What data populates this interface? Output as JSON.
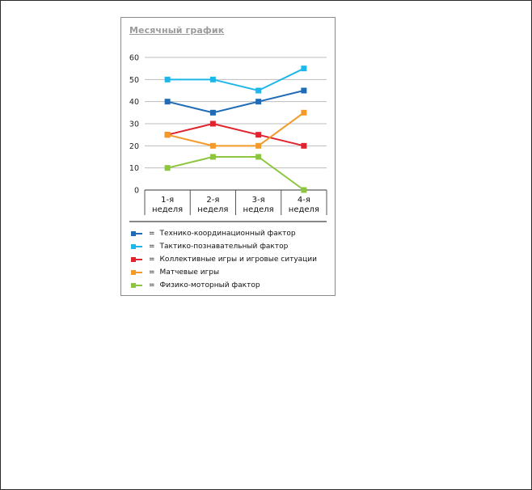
{
  "chart_data": {
    "type": "line",
    "title": "Месячный график",
    "categories": [
      [
        "1-я",
        "неделя"
      ],
      [
        "2-я",
        "неделя"
      ],
      [
        "3-я",
        "неделя"
      ],
      [
        "4-я",
        "неделя"
      ]
    ],
    "ylim": [
      0,
      60
    ],
    "yticks": [
      "0",
      "10",
      "20",
      "30",
      "40",
      "50",
      "60"
    ],
    "grid": true,
    "legend_position": "bottom",
    "legend_separator": "=",
    "series": [
      {
        "name": "Технико-координационный фактор",
        "color": "#1f6bb5",
        "values": [
          40,
          35,
          40,
          45
        ]
      },
      {
        "name": "Тактико-познавательный фактор",
        "color": "#1fb6ea",
        "values": [
          50,
          50,
          45,
          55
        ]
      },
      {
        "name": "Коллективные игры и игровые ситуации",
        "color": "#e0232e",
        "values": [
          25,
          30,
          25,
          20
        ]
      },
      {
        "name": "Матчевые игры",
        "color": "#f39a2b",
        "values": [
          25,
          20,
          20,
          35
        ]
      },
      {
        "name": "Физико-моторный фактор",
        "color": "#8cc63f",
        "values": [
          10,
          15,
          15,
          0
        ]
      }
    ]
  }
}
